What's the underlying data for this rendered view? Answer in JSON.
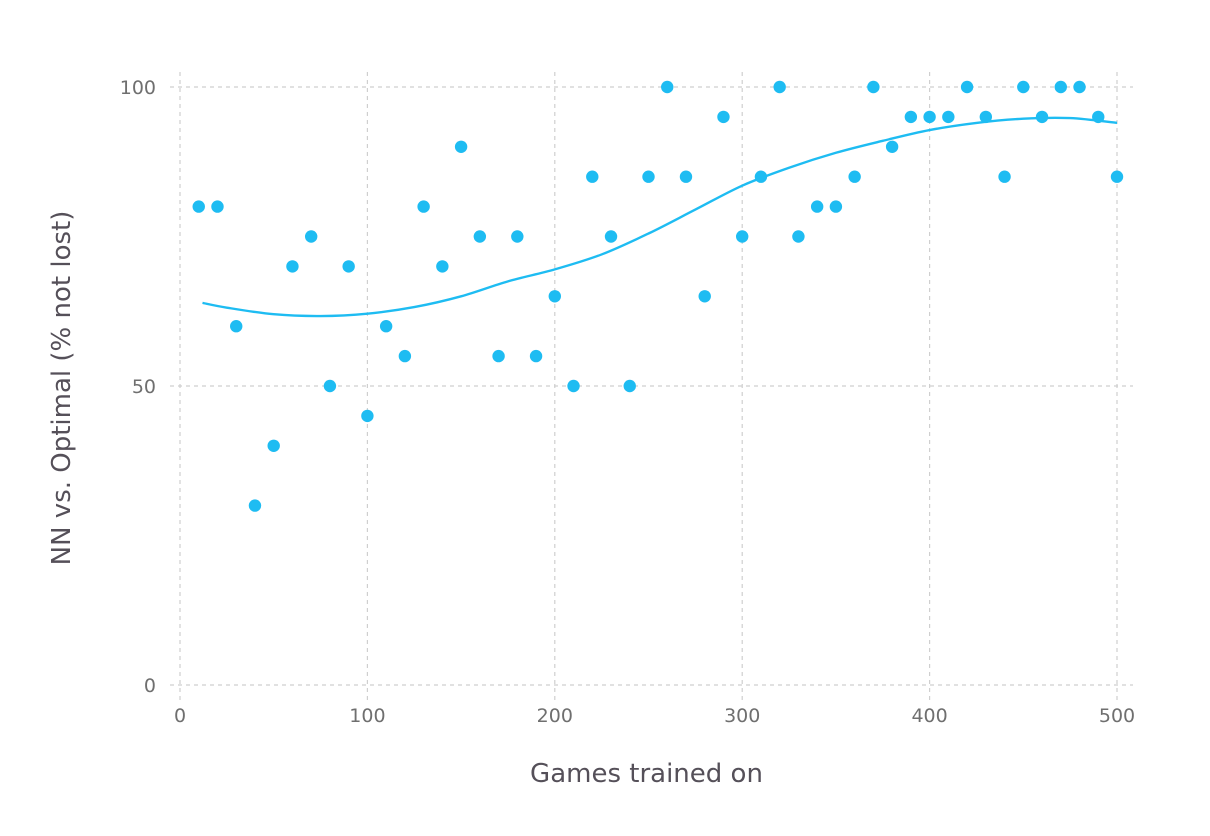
{
  "colors": {
    "series": "#1ebcf2",
    "grid": "#cfcfcf",
    "tick_text": "#6f6f6f",
    "axis_title": "#555059"
  },
  "chart_data": {
    "type": "scatter",
    "title": "",
    "xlabel": "Games trained on",
    "ylabel": "NN vs. Optimal (% not lost)",
    "xlim": [
      0,
      500
    ],
    "ylim": [
      0,
      100
    ],
    "x_ticks": [
      0,
      100,
      200,
      300,
      400,
      500
    ],
    "x_tick_labels": [
      "0",
      "100",
      "200",
      "300",
      "400",
      "500"
    ],
    "y_ticks": [
      0,
      50,
      100
    ],
    "y_tick_labels": [
      "0",
      "50",
      "100"
    ],
    "grid": true,
    "legend": "none",
    "series": [
      {
        "kind": "points",
        "x": [
          10,
          20,
          30,
          40,
          50,
          60,
          70,
          80,
          90,
          100,
          110,
          120,
          130,
          140,
          150,
          160,
          170,
          180,
          190,
          200,
          210,
          220,
          230,
          240,
          250,
          260,
          270,
          280,
          290,
          300,
          310,
          320,
          330,
          340,
          350,
          360,
          370,
          380,
          390,
          400,
          410,
          420,
          430,
          440,
          450,
          460,
          470,
          480,
          490,
          500
        ],
        "y": [
          80,
          80,
          60,
          30,
          40,
          70,
          75,
          50,
          70,
          45,
          60,
          55,
          80,
          70,
          90,
          75,
          55,
          75,
          55,
          65,
          50,
          85,
          75,
          50,
          85,
          100,
          85,
          65,
          95,
          75,
          85,
          100,
          75,
          80,
          80,
          85,
          100,
          90,
          95,
          95,
          95,
          100,
          95,
          85,
          100,
          95,
          100,
          100,
          95,
          85
        ]
      },
      {
        "kind": "smooth-line",
        "x": [
          12,
          25,
          50,
          75,
          100,
          125,
          150,
          175,
          200,
          225,
          250,
          275,
          300,
          325,
          350,
          375,
          400,
          425,
          450,
          475,
          500
        ],
        "y": [
          63.9,
          63.1,
          62,
          61.7,
          62.1,
          63.2,
          65,
          67.5,
          69.5,
          72,
          75.5,
          79.5,
          83.5,
          86.5,
          89,
          91,
          92.8,
          94,
          94.7,
          94.8,
          94
        ]
      }
    ]
  }
}
